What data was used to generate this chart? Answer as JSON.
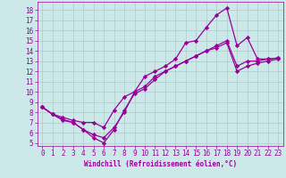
{
  "xlabel": "Windchill (Refroidissement éolien,°C)",
  "bg_color": "#cce8e8",
  "line_color": "#990099",
  "grid_color": "#aacccc",
  "series": [
    {
      "x": [
        0,
        1,
        2,
        3,
        4,
        5,
        6,
        7,
        8,
        9,
        10,
        11,
        12,
        13,
        14,
        15,
        16,
        17,
        18,
        19,
        20,
        21,
        22,
        23
      ],
      "y": [
        8.5,
        7.8,
        7.2,
        7.0,
        6.3,
        5.8,
        5.5,
        6.5,
        8.0,
        10.0,
        10.5,
        11.5,
        12.0,
        12.5,
        13.0,
        13.5,
        14.0,
        14.5,
        15.0,
        12.5,
        13.0,
        13.0,
        13.2,
        13.3
      ]
    },
    {
      "x": [
        0,
        1,
        2,
        3,
        4,
        5,
        6,
        7,
        8,
        9,
        10,
        11,
        12,
        13,
        14,
        15,
        16,
        17,
        18,
        19,
        20,
        21,
        22,
        23
      ],
      "y": [
        8.5,
        7.8,
        7.5,
        7.2,
        7.0,
        7.0,
        6.5,
        8.2,
        9.5,
        10.0,
        11.5,
        12.0,
        12.5,
        13.2,
        14.8,
        15.0,
        16.3,
        17.5,
        18.2,
        14.5,
        15.3,
        13.2,
        13.2,
        13.3
      ]
    },
    {
      "x": [
        0,
        1,
        2,
        3,
        4,
        5,
        6,
        7,
        8,
        9,
        10,
        11,
        12,
        13,
        14,
        15,
        16,
        17,
        18,
        19,
        20,
        21,
        22,
        23
      ],
      "y": [
        8.5,
        7.8,
        7.3,
        7.0,
        6.3,
        5.5,
        5.0,
        6.3,
        8.2,
        9.8,
        10.3,
        11.2,
        12.0,
        12.5,
        13.0,
        13.5,
        14.0,
        14.3,
        14.8,
        12.0,
        12.5,
        12.8,
        13.0,
        13.2
      ]
    }
  ],
  "xlim": [
    -0.5,
    23.5
  ],
  "ylim": [
    4.7,
    18.8
  ],
  "yticks": [
    5,
    6,
    7,
    8,
    9,
    10,
    11,
    12,
    13,
    14,
    15,
    16,
    17,
    18
  ],
  "xticks": [
    0,
    1,
    2,
    3,
    4,
    5,
    6,
    7,
    8,
    9,
    10,
    11,
    12,
    13,
    14,
    15,
    16,
    17,
    18,
    19,
    20,
    21,
    22,
    23
  ],
  "marker": "D",
  "markersize": 2.2,
  "linewidth": 0.9,
  "tick_labelsize": 5.5,
  "xlabel_fontsize": 5.5
}
